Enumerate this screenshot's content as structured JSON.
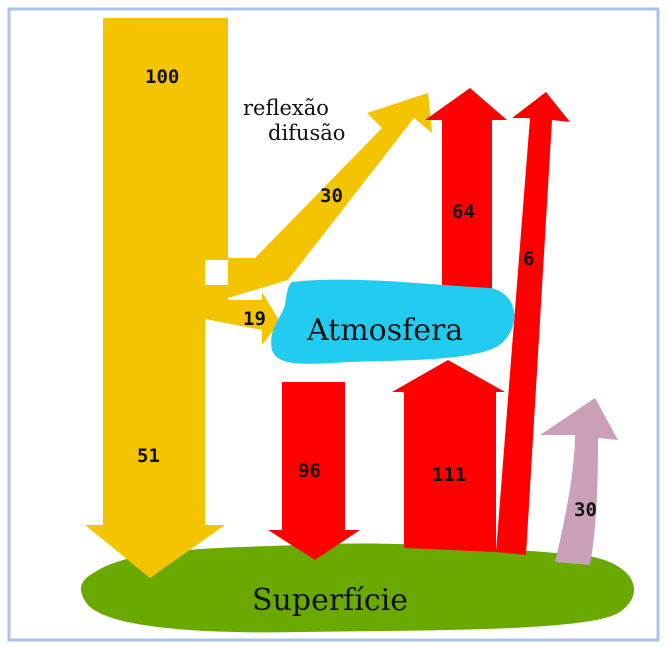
{
  "diagram": {
    "labels": {
      "atmosphere": "Atmosfera",
      "surface": "Superfície",
      "reflection_line1": "reflexão",
      "reflection_line2": "difusão"
    },
    "flows": {
      "incoming": "100",
      "reflected": "30",
      "absorbed_atmosphere": "19",
      "absorbed_surface": "51",
      "atmosphere_to_space": "64",
      "surface_to_space": "6",
      "atmosphere_to_surface": "96",
      "surface_to_atmosphere": "111",
      "surface_other": "30"
    },
    "colors": {
      "solar": "#f5c400",
      "infrared": "#ff0000",
      "atmosphere": "#22ccf0",
      "surface": "#6aaa00",
      "other": "#c9a0b8",
      "frame": "#a9c4e8"
    }
  }
}
